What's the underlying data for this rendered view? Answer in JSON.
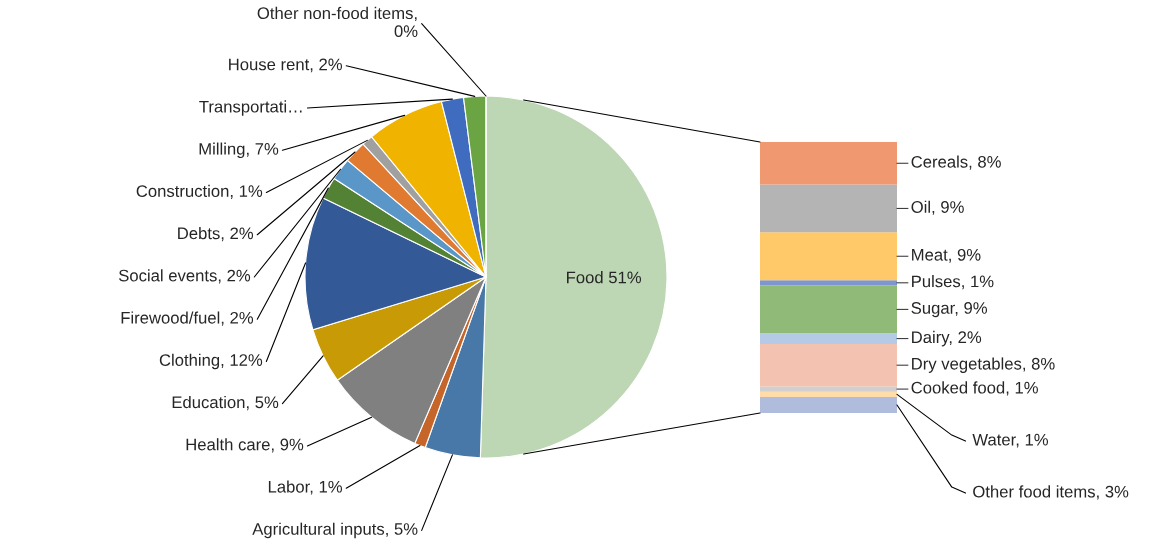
{
  "chart_data": [
    {
      "type": "pie",
      "categories": [
        "Food 51%",
        "Agricultural inputs, 5%",
        "Labor, 1%",
        "Health care, 9%",
        "Education, 5%",
        "Clothing, 12%",
        "Firewood/fuel, 2%",
        "Social events, 2%",
        "Debts, 2%",
        "Construction, 1%",
        "Milling, 7%",
        "Transportati…",
        "House rent, 2%",
        "Other non-food items,\n0%"
      ],
      "values": [
        51,
        5,
        1,
        9,
        5,
        12,
        2,
        2,
        2,
        1,
        7,
        2,
        2,
        0
      ],
      "colors": [
        "#bdd7b4",
        "#4878a8",
        "#c5652a",
        "#808080",
        "#c89a05",
        "#335a97",
        "#548235",
        "#5a96c8",
        "#e07a30",
        "#a0a0a0",
        "#f0b400",
        "#3f6cbf",
        "#6aa443",
        "#9e480e"
      ]
    },
    {
      "type": "bar",
      "stacked": true,
      "categories": [
        null
      ],
      "series": [
        {
          "color": "#b0bcdc",
          "values": [
            3
          ],
          "value_labels": [
            "Other food items, 3%"
          ]
        },
        {
          "color": "#ffdca8",
          "values": [
            1
          ],
          "value_labels": [
            "Water, 1%"
          ]
        },
        {
          "color": "#d0d0d0",
          "values": [
            1
          ],
          "value_labels": [
            "Cooked food, 1%"
          ]
        },
        {
          "color": "#f4c2b0",
          "values": [
            8
          ],
          "value_labels": [
            "Dry vegetables, 8%"
          ]
        },
        {
          "color": "#b4cae6",
          "values": [
            2
          ],
          "value_labels": [
            "Dairy, 2%"
          ]
        },
        {
          "color": "#90ba78",
          "values": [
            9
          ],
          "value_labels": [
            "Sugar, 9%"
          ]
        },
        {
          "color": "#7e96d0",
          "values": [
            1
          ],
          "value_labels": [
            "Pulses, 1%"
          ]
        },
        {
          "color": "#ffc868",
          "values": [
            9
          ],
          "value_labels": [
            "Meat, 9%"
          ]
        },
        {
          "color": "#b4b4b4",
          "values": [
            9
          ],
          "value_labels": [
            "Oil, 9%"
          ]
        },
        {
          "color": "#f09870",
          "values": [
            8
          ],
          "value_labels": [
            "Cereals, 8%"
          ]
        }
      ]
    }
  ]
}
